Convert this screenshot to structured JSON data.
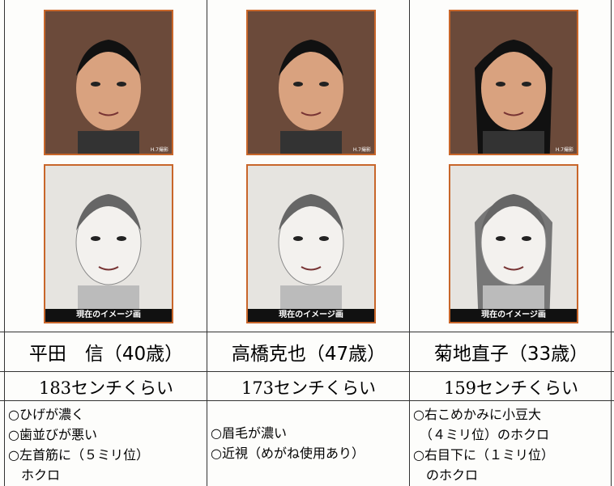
{
  "people": [
    {
      "photo_caption": "H.7撮影",
      "sketch_caption": "現在のイメージ画",
      "name": "平田　信（40歳）",
      "height": "183センチくらい",
      "features": [
        "○ひげが濃く",
        "○歯並びが悪い",
        "○左首筋に（５ミリ位）",
        "　ホクロ"
      ]
    },
    {
      "photo_caption": "H.7撮影",
      "sketch_caption": "現在のイメージ画",
      "name": "高橋克也（47歳）",
      "height": "173センチくらい",
      "features": [
        "○眉毛が濃い",
        "○近視（めがね使用あり）"
      ]
    },
    {
      "photo_caption": "H.7撮影",
      "sketch_caption": "現在のイメージ画",
      "name": "菊地直子（33歳）",
      "height": "159センチくらい",
      "features": [
        "○右こめかみに小豆大",
        "　（４ミリ位）のホクロ",
        "○右目下に（１ミリ位）",
        "　のホクロ"
      ]
    }
  ]
}
